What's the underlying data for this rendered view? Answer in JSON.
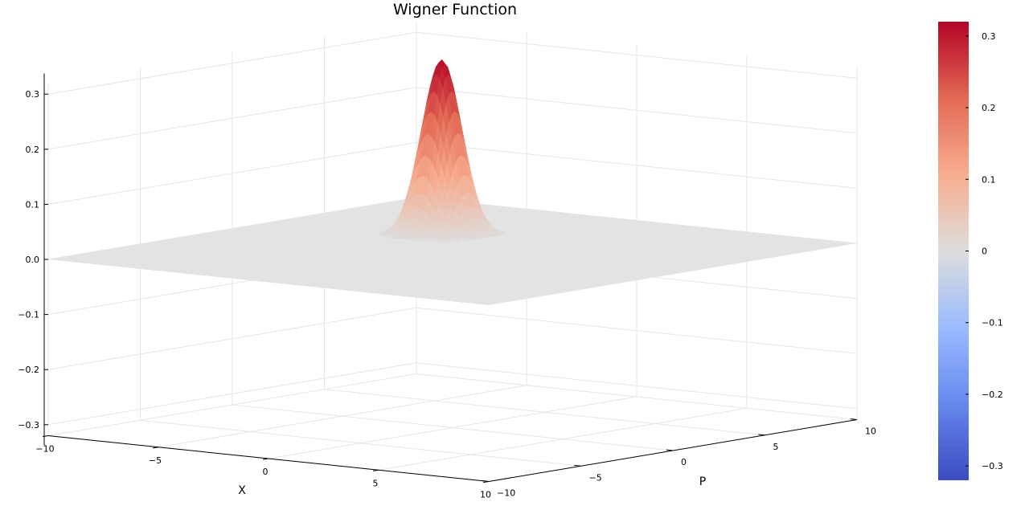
{
  "chart_data": {
    "type": "surface",
    "title": "Wigner Function",
    "xlabel": "X",
    "ylabel": "P",
    "zlabel": "",
    "xlim": [
      -10,
      10
    ],
    "ylim": [
      -10,
      10
    ],
    "zlim": [
      -0.32,
      0.32
    ],
    "x_ticks": [
      -10,
      -5,
      0,
      5,
      10
    ],
    "y_ticks": [
      -10,
      -5,
      0,
      5,
      10
    ],
    "z_ticks": [
      -0.3,
      -0.2,
      -0.1,
      0.0,
      0.1,
      0.2,
      0.3
    ],
    "x_tick_labels": [
      "−10",
      "−5",
      "0",
      "5",
      "10"
    ],
    "y_tick_labels": [
      "−10",
      "−5",
      "0",
      "5",
      "10"
    ],
    "z_tick_labels": [
      "−0.3",
      "−0.2",
      "−0.1",
      "0.0",
      "0.1",
      "0.2",
      "0.3"
    ],
    "surface": {
      "function": "gaussian",
      "peak": 0.3183,
      "center_x": -3,
      "center_p": 3,
      "sigma": 0.707
    },
    "grid": true,
    "colorbar": {
      "colormap": "coolwarm",
      "range": [
        -0.32,
        0.32
      ],
      "ticks": [
        -0.3,
        -0.2,
        -0.1,
        0.0,
        0.1,
        0.2,
        0.3
      ],
      "tick_labels": [
        "−0.3",
        "−0.2",
        "−0.1",
        "0",
        "0.1",
        "0.2",
        "0.3"
      ],
      "placement": "right"
    },
    "colors": {
      "flat_surface": "#e3e3e3",
      "grid": "#e6e6e6",
      "axis": "#000000",
      "cmap_low": "#3b4cc0",
      "cmap_mid": "#dddddd",
      "cmap_high": "#b40426"
    }
  }
}
